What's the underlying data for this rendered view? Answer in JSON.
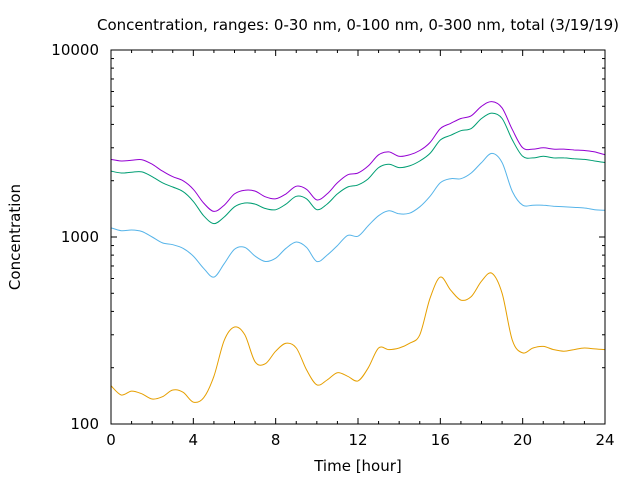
{
  "chart_data": {
    "type": "line",
    "title": "Concentration, ranges: 0-30 nm, 0-100 nm, 0-300 nm, total (3/19/19)",
    "xlabel": "Time [hour]",
    "ylabel": "Concentration",
    "xlim": [
      0,
      24
    ],
    "ylim": [
      100,
      10000
    ],
    "yscale": "log",
    "grid": false,
    "legend": "none",
    "x_ticks": [
      0,
      4,
      8,
      12,
      16,
      20,
      24
    ],
    "x_tick_labels": [
      "0",
      "4",
      "8",
      "12",
      "16",
      "20",
      "24"
    ],
    "y_ticks": [
      100,
      1000,
      10000
    ],
    "y_tick_labels": [
      "100",
      "1000",
      "10000"
    ],
    "series": [
      {
        "color": "#e69f00",
        "x": [
          0,
          0.5,
          1,
          1.5,
          2,
          2.5,
          3,
          3.5,
          4,
          4.5,
          5,
          5.5,
          6,
          6.5,
          7,
          7.5,
          8,
          8.5,
          9,
          9.5,
          10,
          10.5,
          11,
          11.5,
          12,
          12.5,
          13,
          13.5,
          14,
          14.5,
          15,
          15.5,
          16,
          16.5,
          17,
          17.5,
          18,
          18.5,
          19,
          19.5,
          20,
          20.5,
          21,
          21.5,
          22,
          22.5,
          23,
          23.5,
          24
        ],
        "values": [
          160,
          143,
          150,
          145,
          136,
          140,
          152,
          148,
          131,
          138,
          180,
          280,
          330,
          300,
          215,
          210,
          245,
          270,
          255,
          195,
          162,
          172,
          188,
          180,
          170,
          200,
          255,
          250,
          255,
          270,
          300,
          470,
          610,
          520,
          460,
          480,
          580,
          640,
          500,
          280,
          240,
          255,
          260,
          250,
          245,
          250,
          255,
          252,
          250
        ]
      },
      {
        "color": "#56b4e9",
        "x": [
          0,
          0.5,
          1,
          1.5,
          2,
          2.5,
          3,
          3.5,
          4,
          4.5,
          5,
          5.5,
          6,
          6.5,
          7,
          7.5,
          8,
          8.5,
          9,
          9.5,
          10,
          10.5,
          11,
          11.5,
          12,
          12.5,
          13,
          13.5,
          14,
          14.5,
          15,
          15.5,
          16,
          16.5,
          17,
          17.5,
          18,
          18.5,
          19,
          19.5,
          20,
          20.5,
          21,
          21.5,
          22,
          22.5,
          23,
          23.5,
          24
        ],
        "values": [
          1120,
          1080,
          1090,
          1070,
          1000,
          930,
          910,
          870,
          790,
          680,
          610,
          720,
          860,
          880,
          790,
          740,
          770,
          870,
          940,
          880,
          740,
          800,
          900,
          1020,
          1010,
          1150,
          1300,
          1380,
          1330,
          1340,
          1450,
          1650,
          1950,
          2050,
          2050,
          2200,
          2500,
          2800,
          2500,
          1750,
          1480,
          1480,
          1480,
          1460,
          1450,
          1440,
          1430,
          1400,
          1390
        ]
      },
      {
        "color": "#009e73",
        "x": [
          0,
          0.5,
          1,
          1.5,
          2,
          2.5,
          3,
          3.5,
          4,
          4.5,
          5,
          5.5,
          6,
          6.5,
          7,
          7.5,
          8,
          8.5,
          9,
          9.5,
          10,
          10.5,
          11,
          11.5,
          12,
          12.5,
          13,
          13.5,
          14,
          14.5,
          15,
          15.5,
          16,
          16.5,
          17,
          17.5,
          18,
          18.5,
          19,
          19.5,
          20,
          20.5,
          21,
          21.5,
          22,
          22.5,
          23,
          23.5,
          24
        ],
        "values": [
          2250,
          2200,
          2220,
          2230,
          2100,
          1950,
          1850,
          1750,
          1550,
          1300,
          1180,
          1280,
          1450,
          1520,
          1500,
          1420,
          1400,
          1500,
          1650,
          1600,
          1400,
          1500,
          1700,
          1850,
          1900,
          2050,
          2350,
          2450,
          2350,
          2400,
          2550,
          2800,
          3300,
          3500,
          3700,
          3800,
          4300,
          4600,
          4300,
          3300,
          2700,
          2650,
          2700,
          2650,
          2650,
          2620,
          2600,
          2550,
          2500
        ]
      },
      {
        "color": "#9400d3",
        "x": [
          0,
          0.5,
          1,
          1.5,
          2,
          2.5,
          3,
          3.5,
          4,
          4.5,
          5,
          5.5,
          6,
          6.5,
          7,
          7.5,
          8,
          8.5,
          9,
          9.5,
          10,
          10.5,
          11,
          11.5,
          12,
          12.5,
          13,
          13.5,
          14,
          14.5,
          15,
          15.5,
          16,
          16.5,
          17,
          17.5,
          18,
          18.5,
          19,
          19.5,
          20,
          20.5,
          21,
          21.5,
          22,
          22.5,
          23,
          23.5,
          24
        ],
        "values": [
          2600,
          2550,
          2570,
          2590,
          2450,
          2250,
          2100,
          2000,
          1800,
          1520,
          1370,
          1480,
          1700,
          1780,
          1760,
          1640,
          1600,
          1700,
          1870,
          1800,
          1580,
          1700,
          1950,
          2150,
          2200,
          2400,
          2750,
          2850,
          2700,
          2750,
          2900,
          3200,
          3800,
          4050,
          4300,
          4450,
          5000,
          5300,
          4900,
          3750,
          3000,
          2950,
          3000,
          2950,
          2950,
          2920,
          2900,
          2850,
          2750
        ]
      }
    ]
  }
}
